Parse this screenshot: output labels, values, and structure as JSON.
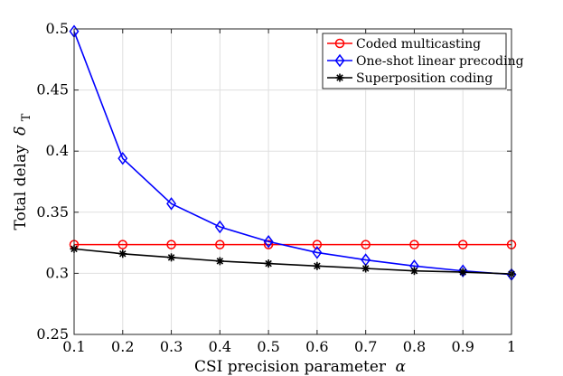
{
  "chart_data": {
    "type": "line",
    "title": "",
    "xlabel": "CSI precision parameter",
    "xlabel_symbol": "α",
    "ylabel": "Total delay",
    "ylabel_symbol": "δ",
    "ylabel_subscript": "T",
    "x": [
      0.1,
      0.2,
      0.3,
      0.4,
      0.5,
      0.6,
      0.7,
      0.8,
      0.9,
      1.0
    ],
    "xlim": [
      0.1,
      1.0
    ],
    "ylim": [
      0.25,
      0.5
    ],
    "xticks": [
      "0.1",
      "0.2",
      "0.3",
      "0.4",
      "0.5",
      "0.6",
      "0.7",
      "0.8",
      "0.9",
      "1"
    ],
    "yticks": [
      "0.25",
      "0.3",
      "0.35",
      "0.4",
      "0.45",
      "0.5"
    ],
    "grid": true,
    "legend_position": "top-right",
    "series": [
      {
        "name": "Coded multicasting",
        "color": "#ff0000",
        "marker": "circle",
        "values": [
          0.3235,
          0.3235,
          0.3235,
          0.3235,
          0.3235,
          0.3235,
          0.3235,
          0.3235,
          0.3235,
          0.3235
        ]
      },
      {
        "name": "One-shot linear precoding",
        "color": "#0000ff",
        "marker": "diamond",
        "values": [
          0.498,
          0.394,
          0.357,
          0.338,
          0.326,
          0.317,
          0.311,
          0.306,
          0.302,
          0.299
        ]
      },
      {
        "name": "Superposition coding",
        "color": "#000000",
        "marker": "asterisk",
        "values": [
          0.32,
          0.316,
          0.313,
          0.31,
          0.308,
          0.306,
          0.304,
          0.302,
          0.301,
          0.2995
        ]
      }
    ]
  }
}
